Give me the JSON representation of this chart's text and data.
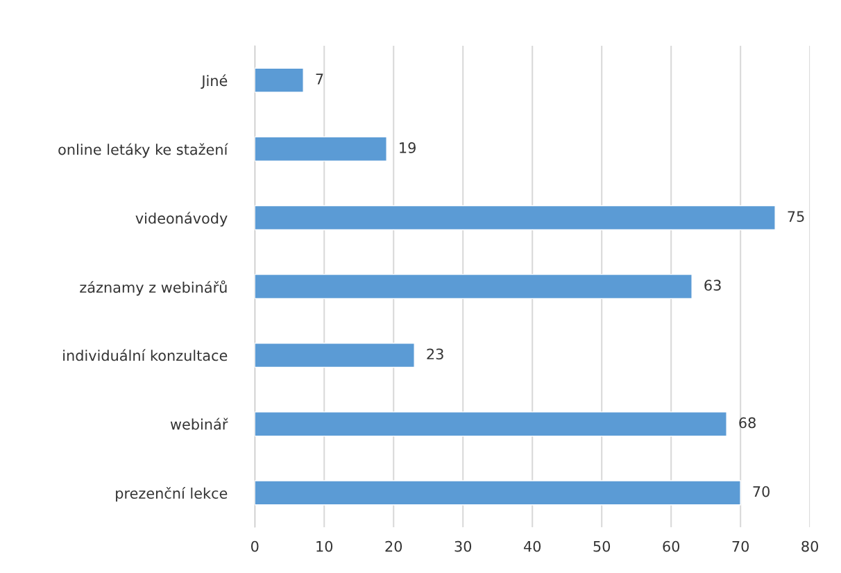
{
  "chart_data": {
    "type": "bar",
    "orientation": "horizontal",
    "categories": [
      "Jiné",
      "online letáky ke stažení",
      "videonávody",
      "záznamy z webinářů",
      "individuální konzultace",
      "webinář",
      "prezenční lekce"
    ],
    "values": [
      7,
      19,
      75,
      63,
      23,
      68,
      70
    ],
    "color": "#5b9bd5",
    "xlim": [
      0,
      80
    ],
    "xticks": [
      0,
      10,
      20,
      30,
      40,
      50,
      60,
      70,
      80
    ],
    "grid": "x",
    "data_labels": true
  }
}
